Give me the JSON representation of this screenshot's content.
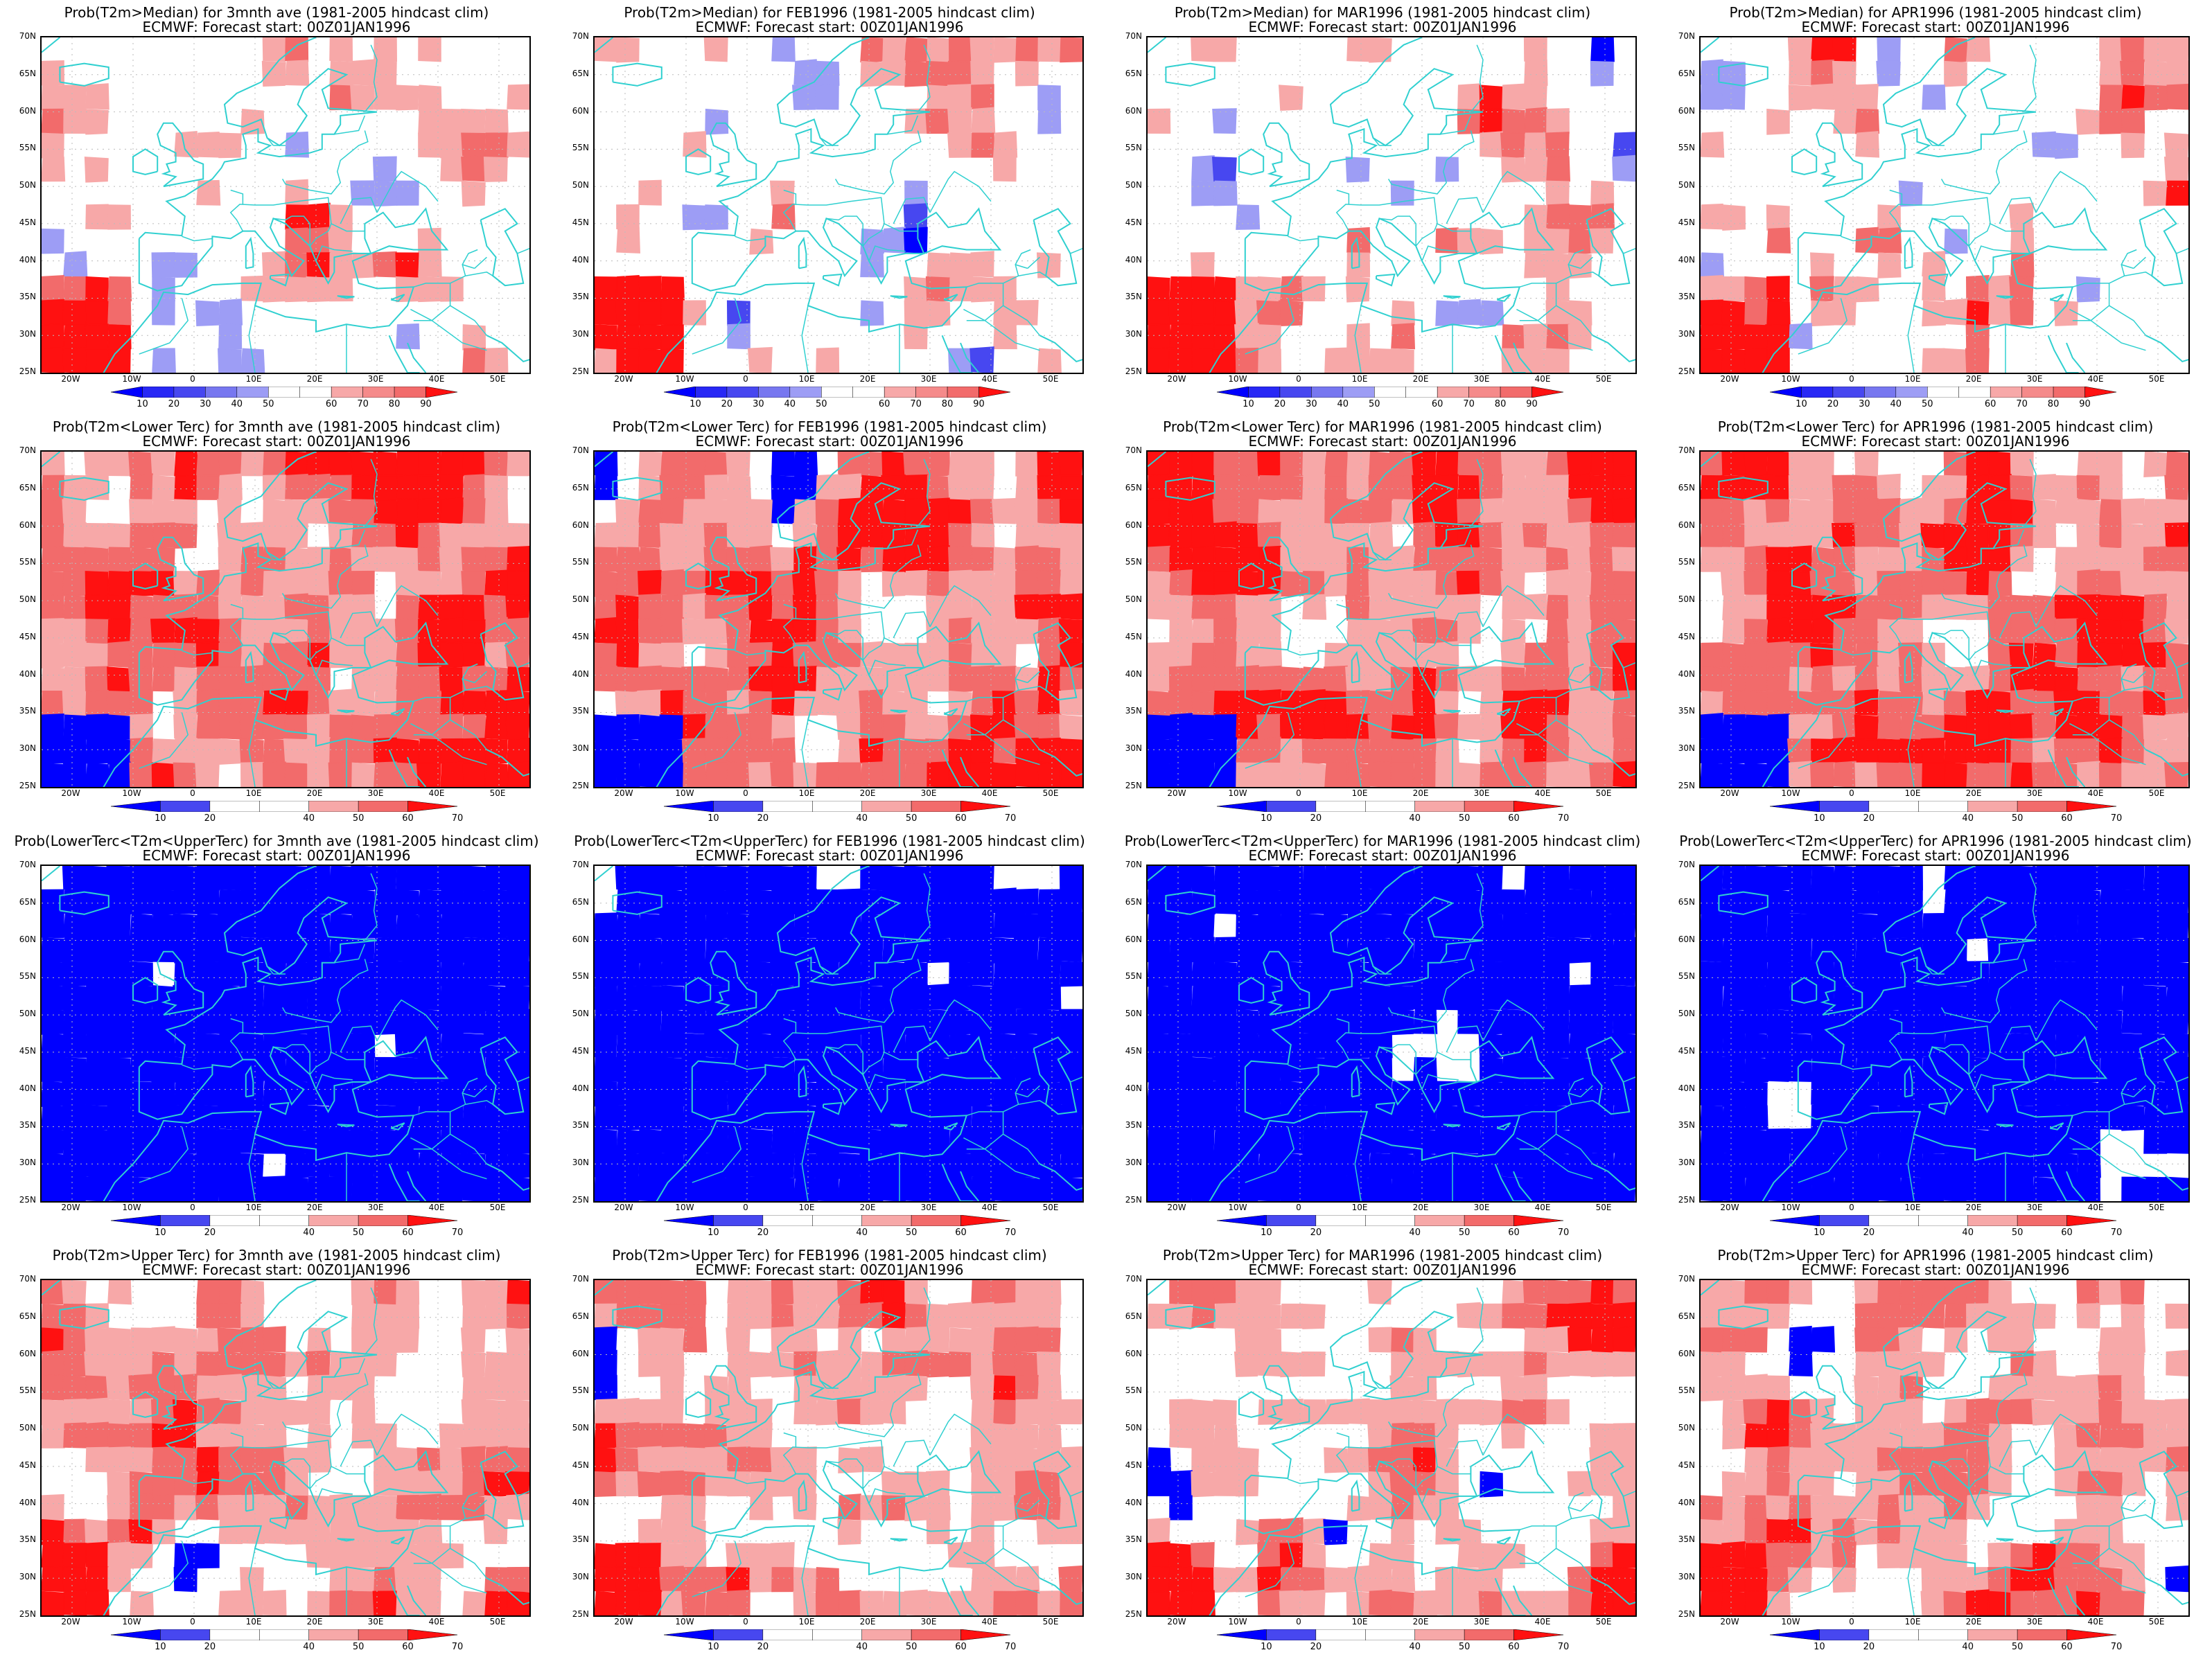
{
  "colors": {
    "blue_dark": "#0000ff",
    "blue_mid": "#4747f0",
    "blue_light": "#9d9df5",
    "red_light": "#f7a8a8",
    "red_mid": "#f26b6b",
    "red_dark": "#ff1111",
    "coast": "#30d0d0",
    "grid": "#bbbbbb"
  },
  "lat_labels": [
    "70N",
    "65N",
    "60N",
    "55N",
    "50N",
    "45N",
    "40N",
    "35N",
    "30N",
    "25N"
  ],
  "lon_labels": [
    "20W",
    "10W",
    "0",
    "10E",
    "20E",
    "30E",
    "40E",
    "50E"
  ],
  "rows": [
    {
      "id": "median",
      "colorbar": [
        "10",
        "20",
        "30",
        "40",
        "50",
        "60",
        "70",
        "80",
        "90"
      ]
    },
    {
      "id": "lower",
      "colorbar": [
        "10",
        "20",
        "40",
        "50",
        "60",
        "70"
      ]
    },
    {
      "id": "middle",
      "colorbar": [
        "10",
        "20",
        "40",
        "50",
        "60",
        "70"
      ]
    },
    {
      "id": "upper",
      "colorbar": [
        "10",
        "20",
        "40",
        "50",
        "60",
        "70"
      ]
    }
  ],
  "panels": [
    {
      "title": "Prob(T2m>Median) for 3mnth ave (1981-2005 hindcast clim)",
      "subtitle": "ECMWF: Forecast start: 00Z01JAN1996",
      "field": "mixed",
      "seed": 11
    },
    {
      "title": "Prob(T2m>Median) for FEB1996 (1981-2005 hindcast clim)",
      "subtitle": "ECMWF: Forecast start: 00Z01JAN1996",
      "field": "mixed",
      "seed": 12
    },
    {
      "title": "Prob(T2m>Median) for MAR1996 (1981-2005 hindcast clim)",
      "subtitle": "ECMWF: Forecast start: 00Z01JAN1996",
      "field": "mixed",
      "seed": 13
    },
    {
      "title": "Prob(T2m>Median) for APR1996 (1981-2005 hindcast clim)",
      "subtitle": "ECMWF: Forecast start: 00Z01JAN1996",
      "field": "mixed",
      "seed": 14
    },
    {
      "title": "Prob(T2m<Lower Terc) for 3mnth ave (1981-2005 hindcast clim)",
      "subtitle": "ECMWF: Forecast start: 00Z01JAN1996",
      "field": "red",
      "seed": 21
    },
    {
      "title": "Prob(T2m<Lower Terc) for FEB1996 (1981-2005 hindcast clim)",
      "subtitle": "ECMWF: Forecast start: 00Z01JAN1996",
      "field": "red",
      "seed": 22
    },
    {
      "title": "Prob(T2m<Lower Terc) for MAR1996 (1981-2005 hindcast clim)",
      "subtitle": "ECMWF: Forecast start: 00Z01JAN1996",
      "field": "red",
      "seed": 23
    },
    {
      "title": "Prob(T2m<Lower Terc) for APR1996 (1981-2005 hindcast clim)",
      "subtitle": "ECMWF: Forecast start: 00Z01JAN1996",
      "field": "red",
      "seed": 24
    },
    {
      "title": "Prob(LowerTerc<T2m<UpperTerc) for 3mnth ave (1981-2005 hindcast clim)",
      "subtitle": "ECMWF: Forecast start: 00Z01JAN1996",
      "field": "blue",
      "seed": 31
    },
    {
      "title": "Prob(LowerTerc<T2m<UpperTerc) for FEB1996 (1981-2005 hindcast clim)",
      "subtitle": "ECMWF: Forecast start: 00Z01JAN1996",
      "field": "blue",
      "seed": 32
    },
    {
      "title": "Prob(LowerTerc<T2m<UpperTerc) for MAR1996 (1981-2005 hindcast clim)",
      "subtitle": "ECMWF: Forecast start: 00Z01JAN1996",
      "field": "blue",
      "seed": 33
    },
    {
      "title": "Prob(LowerTerc<T2m<UpperTerc) for APR1996 (1981-2005 hindcast clim)",
      "subtitle": "ECMWF: Forecast start: 00Z01JAN1996",
      "field": "blue",
      "seed": 34
    },
    {
      "title": "Prob(T2m>Upper Terc) for 3mnth ave (1981-2005 hindcast clim)",
      "subtitle": "ECMWF: Forecast start: 00Z01JAN1996",
      "field": "redmix",
      "seed": 41
    },
    {
      "title": "Prob(T2m>Upper Terc) for FEB1996 (1981-2005 hindcast clim)",
      "subtitle": "ECMWF: Forecast start: 00Z01JAN1996",
      "field": "redmix",
      "seed": 42
    },
    {
      "title": "Prob(T2m>Upper Terc) for MAR1996 (1981-2005 hindcast clim)",
      "subtitle": "ECMWF: Forecast start: 00Z01JAN1996",
      "field": "redmix",
      "seed": 43
    },
    {
      "title": "Prob(T2m>Upper Terc) for APR1996 (1981-2005 hindcast clim)",
      "subtitle": "ECMWF: Forecast start: 00Z01JAN1996",
      "field": "redmix",
      "seed": 44
    }
  ]
}
